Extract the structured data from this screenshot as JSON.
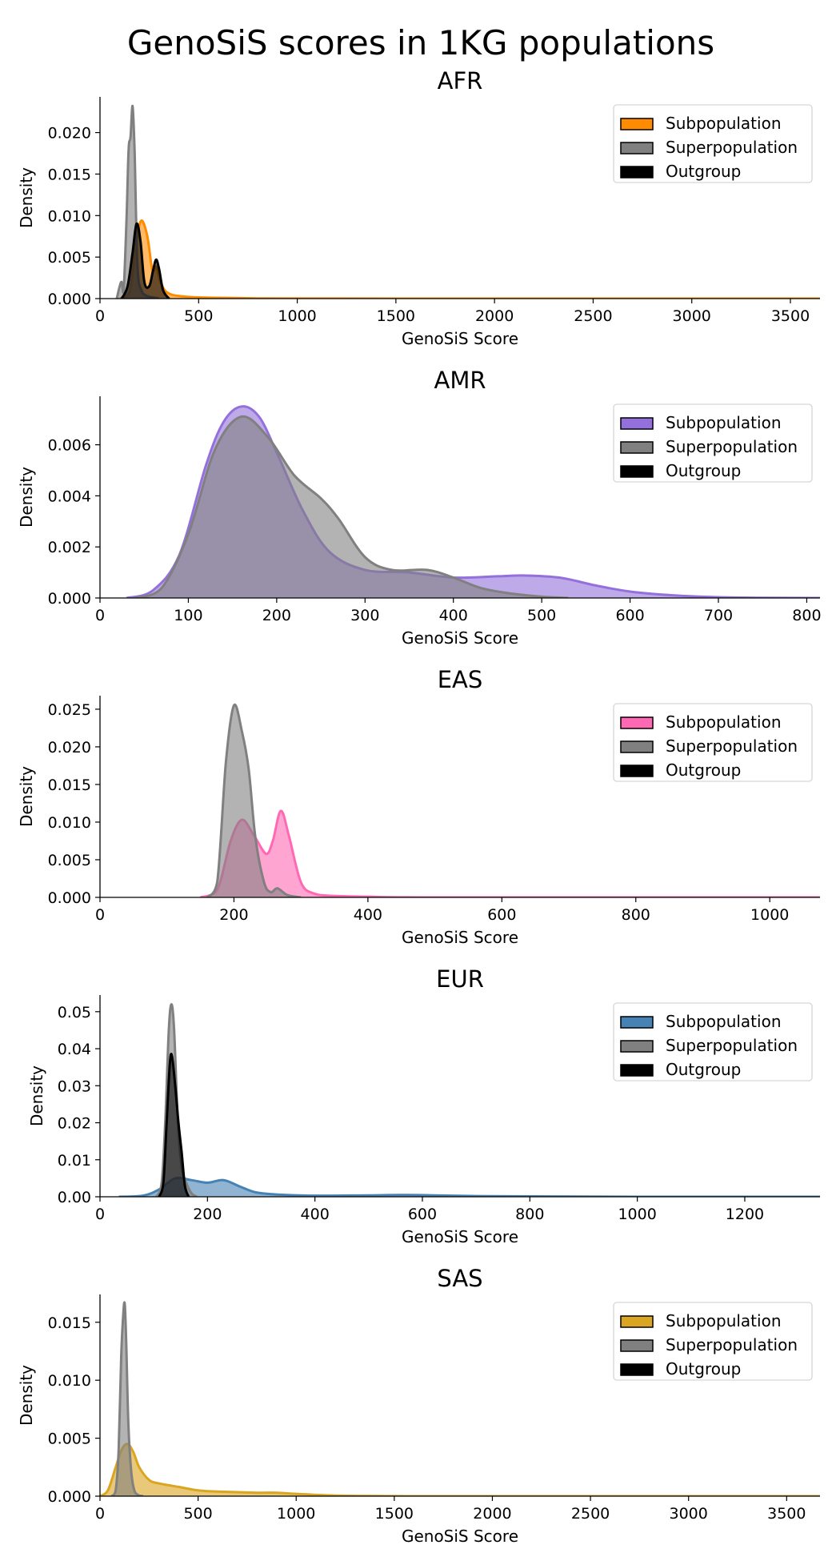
{
  "figure": {
    "title": "GenoSiS scores in 1KG populations"
  },
  "chart_data": [
    {
      "type": "area",
      "title": "AFR",
      "xlabel": "GenoSiS Score",
      "ylabel": "Density",
      "xlim": [
        0,
        3650
      ],
      "ylim": [
        0,
        0.0243
      ],
      "xticks": [
        0,
        500,
        1000,
        1500,
        2000,
        2500,
        3000,
        3500
      ],
      "yticks": [
        0.0,
        0.005,
        0.01,
        0.015,
        0.02
      ],
      "ytick_decimals": 3,
      "legend": {
        "position": "top-right",
        "entries": [
          "Subpopulation",
          "Superpopulation",
          "Outgroup"
        ]
      },
      "series": [
        {
          "name": "Subpopulation",
          "color": "#ff8c00",
          "x": [
            100,
            150,
            185,
            210,
            240,
            265,
            285,
            310,
            350,
            450,
            600,
            800,
            1200,
            2000,
            3650
          ],
          "y": [
            0,
            0.0008,
            0.007,
            0.0094,
            0.0075,
            0.0035,
            0.0038,
            0.0018,
            0.0006,
            0.0002,
            0.0001,
            3e-05,
            1e-05,
            0,
            0
          ]
        },
        {
          "name": "Superpopulation",
          "color": "#808080",
          "x": [
            85,
            100,
            110,
            120,
            135,
            145,
            155,
            165,
            175,
            190,
            210,
            240,
            280,
            300
          ],
          "y": [
            0,
            0.0015,
            0.002,
            0.001,
            0.01,
            0.018,
            0.0195,
            0.0232,
            0.018,
            0.004,
            0.001,
            0.0003,
            0.0001,
            0
          ]
        },
        {
          "name": "Outgroup",
          "color": "#000000",
          "x": [
            110,
            140,
            165,
            185,
            205,
            225,
            250,
            270,
            285,
            300,
            320,
            350
          ],
          "y": [
            0,
            0.0015,
            0.0055,
            0.009,
            0.007,
            0.002,
            0.0015,
            0.0035,
            0.0047,
            0.0035,
            0.001,
            0
          ]
        }
      ]
    },
    {
      "type": "area",
      "title": "AMR",
      "xlabel": "GenoSiS Score",
      "ylabel": "Density",
      "xlim": [
        0,
        815
      ],
      "ylim": [
        0,
        0.0079
      ],
      "xticks": [
        0,
        100,
        200,
        300,
        400,
        500,
        600,
        700,
        800
      ],
      "yticks": [
        0.0,
        0.002,
        0.004,
        0.006
      ],
      "ytick_decimals": 3,
      "legend": {
        "position": "top-right",
        "entries": [
          "Subpopulation",
          "Superpopulation",
          "Outgroup"
        ]
      },
      "series": [
        {
          "name": "Subpopulation",
          "color": "#9370db",
          "x": [
            30,
            60,
            90,
            120,
            140,
            160,
            180,
            200,
            230,
            260,
            300,
            350,
            400,
            450,
            480,
            520,
            560,
            600,
            650,
            700,
            750,
            815
          ],
          "y": [
            0,
            0.0003,
            0.0017,
            0.0052,
            0.0069,
            0.0075,
            0.0071,
            0.0057,
            0.0034,
            0.0018,
            0.0011,
            0.001,
            0.0008,
            0.00085,
            0.00088,
            0.0008,
            0.0005,
            0.00025,
            0.0001,
            3e-05,
            1e-05,
            0
          ]
        },
        {
          "name": "Superpopulation",
          "color": "#808080",
          "x": [
            40,
            70,
            100,
            130,
            160,
            190,
            220,
            250,
            270,
            300,
            330,
            370,
            400,
            430,
            460,
            500,
            530
          ],
          "y": [
            0,
            0.0004,
            0.0025,
            0.0058,
            0.0071,
            0.0063,
            0.0048,
            0.0039,
            0.0031,
            0.0016,
            0.0011,
            0.0011,
            0.0008,
            0.0004,
            0.0002,
            5e-05,
            0
          ]
        }
      ]
    },
    {
      "type": "area",
      "title": "EAS",
      "xlabel": "GenoSiS Score",
      "ylabel": "Density",
      "xlim": [
        0,
        1075
      ],
      "ylim": [
        0,
        0.0268
      ],
      "xticks": [
        0,
        200,
        400,
        600,
        800,
        1000
      ],
      "yticks": [
        0.0,
        0.005,
        0.01,
        0.015,
        0.02,
        0.025
      ],
      "ytick_decimals": 3,
      "legend": {
        "position": "top-right",
        "entries": [
          "Subpopulation",
          "Superpopulation",
          "Outgroup"
        ]
      },
      "series": [
        {
          "name": "Subpopulation",
          "color": "#ff69b4",
          "x": [
            150,
            175,
            195,
            212,
            230,
            248,
            258,
            270,
            282,
            300,
            320,
            350,
            400,
            500,
            1075
          ],
          "y": [
            0,
            0.001,
            0.0075,
            0.0103,
            0.0082,
            0.0058,
            0.0075,
            0.0115,
            0.0082,
            0.002,
            0.0005,
            0.0002,
            0.0001,
            0,
            0
          ]
        },
        {
          "name": "Superpopulation",
          "color": "#808080",
          "x": [
            160,
            175,
            188,
            200,
            212,
            222,
            232,
            245,
            255,
            265,
            280,
            300
          ],
          "y": [
            0,
            0.002,
            0.018,
            0.0255,
            0.022,
            0.017,
            0.008,
            0.002,
            0.0007,
            0.0012,
            0.0003,
            0
          ]
        }
      ]
    },
    {
      "type": "area",
      "title": "EUR",
      "xlabel": "GenoSiS Score",
      "ylabel": "Density",
      "xlim": [
        0,
        1340
      ],
      "ylim": [
        0,
        0.0545
      ],
      "xticks": [
        0,
        200,
        400,
        600,
        800,
        1000,
        1200
      ],
      "yticks": [
        0.0,
        0.01,
        0.02,
        0.03,
        0.04,
        0.05
      ],
      "ytick_decimals": 2,
      "legend": {
        "position": "top-right",
        "entries": [
          "Subpopulation",
          "Superpopulation",
          "Outgroup"
        ]
      },
      "series": [
        {
          "name": "Subpopulation",
          "color": "#4682b4",
          "x": [
            35,
            80,
            110,
            140,
            170,
            200,
            230,
            260,
            290,
            330,
            400,
            500,
            560,
            620,
            700,
            800,
            1000,
            1340
          ],
          "y": [
            0,
            0.0003,
            0.002,
            0.005,
            0.0045,
            0.0038,
            0.0045,
            0.0028,
            0.0012,
            0.0006,
            0.0003,
            0.0004,
            0.0005,
            0.0004,
            0.0002,
            0.0001,
            0,
            0
          ]
        },
        {
          "name": "Superpopulation",
          "color": "#808080",
          "x": [
            105,
            115,
            122,
            128,
            133,
            138,
            145,
            152,
            160,
            170,
            180
          ],
          "y": [
            0,
            0.004,
            0.022,
            0.045,
            0.052,
            0.045,
            0.02,
            0.008,
            0.004,
            0.001,
            0
          ]
        },
        {
          "name": "Outgroup",
          "color": "#000000",
          "x": [
            110,
            118,
            124,
            130,
            134,
            140,
            146,
            152,
            158,
            165
          ],
          "y": [
            0,
            0.004,
            0.02,
            0.036,
            0.038,
            0.03,
            0.02,
            0.012,
            0.003,
            0
          ]
        }
      ]
    },
    {
      "type": "area",
      "title": "SAS",
      "xlabel": "GenoSiS Score",
      "ylabel": "Density",
      "xlim": [
        0,
        3670
      ],
      "ylim": [
        0,
        0.0174
      ],
      "xticks": [
        0,
        500,
        1000,
        1500,
        2000,
        2500,
        3000,
        3500
      ],
      "yticks": [
        0.0,
        0.005,
        0.01,
        0.015
      ],
      "ytick_decimals": 3,
      "legend": {
        "position": "top-right",
        "entries": [
          "Subpopulation",
          "Superpopulation",
          "Outgroup"
        ]
      },
      "series": [
        {
          "name": "Subpopulation",
          "color": "#daa520",
          "x": [
            0,
            40,
            80,
            110,
            140,
            170,
            200,
            250,
            300,
            400,
            500,
            600,
            800,
            900,
            1000,
            1200,
            1500,
            2000,
            3670
          ],
          "y": [
            0,
            0.0005,
            0.0025,
            0.004,
            0.0045,
            0.0038,
            0.0025,
            0.0014,
            0.0011,
            0.0008,
            0.0005,
            0.0004,
            0.0003,
            0.0003,
            0.0002,
            5e-05,
            1e-05,
            0,
            0
          ]
        },
        {
          "name": "Superpopulation",
          "color": "#808080",
          "x": [
            60,
            80,
            95,
            108,
            118,
            126,
            134,
            145,
            160,
            175,
            195,
            220
          ],
          "y": [
            0,
            0.0005,
            0.004,
            0.012,
            0.0155,
            0.0166,
            0.013,
            0.006,
            0.002,
            0.0005,
            0.0001,
            0
          ]
        }
      ]
    }
  ]
}
